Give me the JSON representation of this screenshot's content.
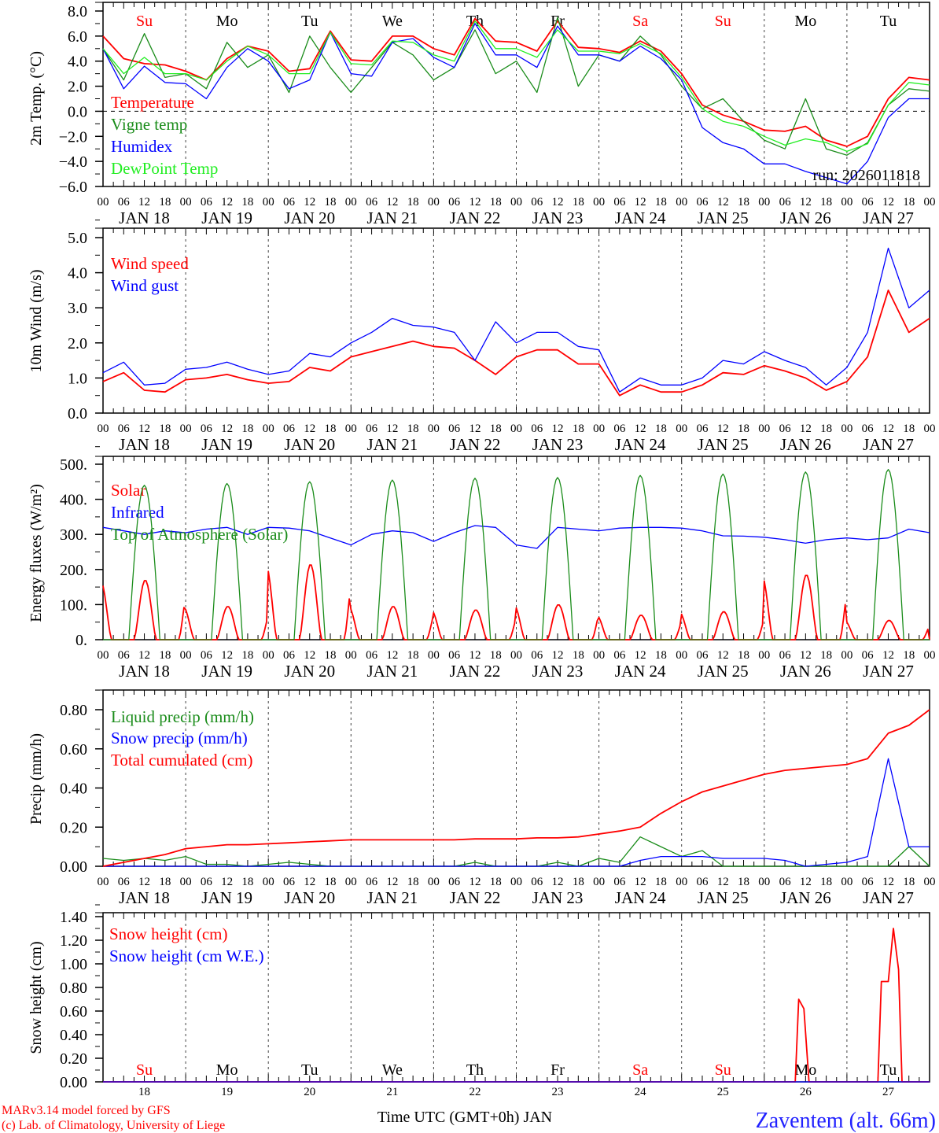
{
  "chart_data": {
    "type": "line",
    "x_unit": "hours since JAN 18 00 UTC",
    "x_step_hours": 6,
    "x_range": [
      0,
      240
    ],
    "hour_tick_labels": [
      "00",
      "06",
      "12",
      "18"
    ],
    "date_labels": [
      "JAN 18",
      "JAN 19",
      "JAN 20",
      "JAN 21",
      "JAN 22",
      "JAN 23",
      "JAN 24",
      "JAN 25",
      "JAN 26",
      "JAN 27"
    ],
    "day_numbers": [
      "18",
      "19",
      "20",
      "21",
      "22",
      "23",
      "24",
      "25",
      "26",
      "27"
    ],
    "weekdays": [
      {
        "label": "Su",
        "color": "#ff0000"
      },
      {
        "label": "Mo",
        "color": "#000000"
      },
      {
        "label": "Tu",
        "color": "#000000"
      },
      {
        "label": "We",
        "color": "#000000"
      },
      {
        "label": "Th",
        "color": "#000000"
      },
      {
        "label": "Fr",
        "color": "#000000"
      },
      {
        "label": "Sa",
        "color": "#ff0000"
      },
      {
        "label": "Su",
        "color": "#ff0000"
      },
      {
        "label": "Mo",
        "color": "#000000"
      },
      {
        "label": "Tu",
        "color": "#000000"
      }
    ],
    "panels": [
      {
        "ylabel": "2m Temp. (°C)",
        "ylim": [
          -6,
          8
        ],
        "ytick_step": 2,
        "ytick_labels": [
          "−6.0",
          "−4.0",
          "−2.0",
          "0.0",
          "2.0",
          "4.0",
          "6.0",
          "8.0"
        ],
        "zero_line": true,
        "annotation": "run: 2026011818",
        "series": [
          {
            "name": "Temperature",
            "color": "#ff0000",
            "values": [
              6.0,
              4.2,
              3.8,
              3.7,
              3.2,
              2.5,
              4.2,
              5.2,
              4.8,
              3.2,
              3.4,
              6.4,
              4.1,
              4.0,
              6.0,
              6.0,
              5.0,
              4.5,
              7.4,
              5.6,
              5.5,
              4.8,
              7.2,
              5.1,
              5.0,
              4.7,
              5.6,
              4.8,
              3.0,
              0.5,
              -0.3,
              -0.8,
              -1.5,
              -1.6,
              -1.2,
              -2.3,
              -2.8,
              -2.0,
              1.0,
              2.7,
              2.5
            ]
          },
          {
            "name": "Vigne temp",
            "color": "#1a8c1a",
            "values": [
              5.0,
              2.5,
              6.2,
              2.7,
              3.0,
              1.8,
              5.5,
              3.5,
              4.5,
              1.5,
              6.0,
              3.5,
              1.5,
              3.5,
              5.5,
              4.5,
              2.5,
              3.5,
              6.5,
              3.0,
              4.0,
              1.5,
              7.5,
              2.0,
              4.5,
              4.0,
              6.0,
              4.5,
              2.0,
              0.2,
              1.0,
              -0.8,
              -2.3,
              -3.0,
              1.0,
              -3.0,
              -3.5,
              -2.5,
              0.5,
              1.8,
              1.6
            ]
          },
          {
            "name": "Humidex",
            "color": "#0000ff",
            "values": [
              5.0,
              1.8,
              3.6,
              2.3,
              2.2,
              1.0,
              3.5,
              5.0,
              4.0,
              1.8,
              2.5,
              6.3,
              3.0,
              2.8,
              5.5,
              5.8,
              4.3,
              3.5,
              7.0,
              4.5,
              4.5,
              3.5,
              6.8,
              4.5,
              4.5,
              4.0,
              5.2,
              4.2,
              2.5,
              -1.3,
              -2.5,
              -3.0,
              -4.2,
              -4.2,
              -4.8,
              -5.3,
              -5.8,
              -4.0,
              -0.5,
              1.0,
              1.0
            ]
          },
          {
            "name": "DewPoint Temp",
            "color": "#22ee22",
            "values": [
              5.0,
              3.0,
              4.3,
              3.0,
              3.0,
              2.5,
              4.0,
              5.2,
              4.5,
              3.0,
              3.0,
              6.3,
              3.8,
              3.7,
              5.6,
              5.5,
              4.5,
              4.0,
              7.2,
              5.0,
              5.0,
              4.3,
              6.5,
              4.8,
              4.8,
              4.6,
              5.4,
              4.6,
              2.7,
              0.2,
              -0.8,
              -1.2,
              -2.0,
              -2.7,
              -2.2,
              -2.5,
              -3.2,
              -2.6,
              0.5,
              2.3,
              2.1
            ]
          }
        ]
      },
      {
        "ylabel": "10m Wind (m/s)",
        "ylim": [
          0,
          5
        ],
        "ytick_step": 1,
        "ytick_labels": [
          "0.0",
          "1.0",
          "2.0",
          "3.0",
          "4.0",
          "5.0"
        ],
        "series": [
          {
            "name": "Wind speed",
            "color": "#ff0000",
            "values": [
              0.9,
              1.15,
              0.65,
              0.6,
              0.95,
              1.0,
              1.1,
              0.95,
              0.85,
              0.9,
              1.3,
              1.2,
              1.6,
              1.75,
              1.9,
              2.05,
              1.9,
              1.85,
              1.5,
              1.1,
              1.6,
              1.8,
              1.8,
              1.4,
              1.4,
              0.5,
              0.8,
              0.6,
              0.6,
              0.8,
              1.15,
              1.1,
              1.35,
              1.2,
              1.0,
              0.65,
              0.9,
              1.6,
              3.5,
              2.3,
              2.7
            ]
          },
          {
            "name": "Wind gust",
            "color": "#0000ff",
            "values": [
              1.15,
              1.45,
              0.8,
              0.85,
              1.25,
              1.3,
              1.45,
              1.25,
              1.1,
              1.2,
              1.7,
              1.6,
              2.0,
              2.3,
              2.7,
              2.5,
              2.45,
              2.3,
              1.5,
              2.6,
              2.0,
              2.3,
              2.3,
              1.9,
              1.8,
              0.6,
              1.0,
              0.8,
              0.8,
              1.0,
              1.5,
              1.4,
              1.75,
              1.5,
              1.3,
              0.8,
              1.3,
              2.3,
              4.7,
              3.0,
              3.5
            ]
          }
        ]
      },
      {
        "ylabel": "Energy fluxes (W/m²)",
        "ylim": [
          0,
          500
        ],
        "ytick_step": 100,
        "ytick_labels": [
          "0.",
          "100.",
          "200.",
          "300.",
          "400.",
          "500."
        ],
        "series": [
          {
            "name": "Solar",
            "color": "#ff0000",
            "daily_peaks": [
              170,
              95,
              215,
              95,
              85,
              100,
              70,
              80,
              185,
              55
            ]
          },
          {
            "name": "Infrared",
            "color": "#0000ff",
            "values": [
              320,
              310,
              300,
              310,
              305,
              315,
              320,
              300,
              320,
              318,
              310,
              290,
              270,
              300,
              310,
              305,
              280,
              305,
              325,
              320,
              270,
              260,
              320,
              315,
              310,
              318,
              320,
              320,
              318,
              310,
              296,
              295,
              292,
              285,
              275,
              285,
              290,
              285,
              290,
              315,
              305
            ]
          },
          {
            "name": "Top of Atmosphere (Solar)",
            "color": "#1a8c1a",
            "daily_peaks": [
              440,
              445,
              450,
              455,
              460,
              462,
              468,
              472,
              478,
              485
            ]
          }
        ]
      },
      {
        "ylabel": "Precip (mm/h)",
        "ylim": [
          0,
          0.9
        ],
        "ytick_step": 0.2,
        "ytick_labels": [
          "0.00",
          "0.20",
          "0.40",
          "0.60",
          "0.80"
        ],
        "series": [
          {
            "name": "Liquid precip (mm/h)",
            "color": "#1a8c1a",
            "values": [
              0.04,
              0.03,
              0.04,
              0.03,
              0.05,
              0.01,
              0.01,
              0.0,
              0.01,
              0.02,
              0.01,
              0,
              0,
              0,
              0,
              0,
              0,
              0,
              0.02,
              0,
              0,
              0,
              0.02,
              0,
              0.04,
              0.02,
              0.15,
              0.1,
              0.05,
              0.08,
              0,
              0,
              0,
              0,
              0,
              0,
              0,
              0,
              0,
              0.1,
              0
            ]
          },
          {
            "name": "Snow precip (mm/h)",
            "color": "#0000ff",
            "values": [
              0,
              0,
              0,
              0,
              0,
              0,
              0,
              0,
              0,
              0,
              0,
              0,
              0,
              0,
              0,
              0,
              0,
              0,
              0,
              0,
              0,
              0,
              0,
              0,
              0,
              0,
              0.03,
              0.05,
              0.05,
              0.05,
              0.04,
              0.04,
              0.04,
              0.03,
              0.0,
              0.01,
              0.02,
              0.05,
              0.55,
              0.1,
              0.1
            ]
          },
          {
            "name": "Total cumulated (cm)",
            "color": "#ff0000",
            "values": [
              0,
              0.02,
              0.04,
              0.06,
              0.09,
              0.1,
              0.11,
              0.11,
              0.115,
              0.12,
              0.125,
              0.13,
              0.135,
              0.135,
              0.135,
              0.135,
              0.135,
              0.135,
              0.14,
              0.14,
              0.14,
              0.145,
              0.145,
              0.15,
              0.165,
              0.18,
              0.2,
              0.27,
              0.33,
              0.38,
              0.41,
              0.44,
              0.47,
              0.49,
              0.5,
              0.51,
              0.52,
              0.55,
              0.68,
              0.72,
              0.8
            ]
          }
        ]
      },
      {
        "ylabel": "Snow height (cm)",
        "ylim": [
          0,
          1.4
        ],
        "ytick_step": 0.2,
        "ytick_labels": [
          "0.00",
          "0.20",
          "0.40",
          "0.60",
          "0.80",
          "1.00",
          "1.20",
          "1.40"
        ],
        "series": [
          {
            "name": "Snow height (cm)",
            "color": "#ff0000",
            "points": [
              [
                0,
                0
              ],
              [
                201,
                0
              ],
              [
                202,
                0.7
              ],
              [
                203.5,
                0.62
              ],
              [
                205,
                0
              ],
              [
                225,
                0
              ],
              [
                226,
                0.85
              ],
              [
                228,
                0.85
              ],
              [
                229.5,
                1.3
              ],
              [
                231,
                0.95
              ],
              [
                232,
                0
              ],
              [
                240,
                0
              ]
            ]
          },
          {
            "name": "Snow height (cm W.E.)",
            "color": "#0000ff",
            "points": [
              [
                0,
                0
              ],
              [
                240,
                0
              ]
            ]
          }
        ]
      }
    ],
    "xlabel": "Time UTC (GMT+0h) JAN"
  },
  "footer": {
    "credit_line1": "MARv3.14 model forced by GFS",
    "credit_line2": "(c) Lab. of Climatology, University of Liege",
    "xlabel": "Time UTC (GMT+0h) JAN",
    "station": "Zaventem (alt. 66m)"
  }
}
